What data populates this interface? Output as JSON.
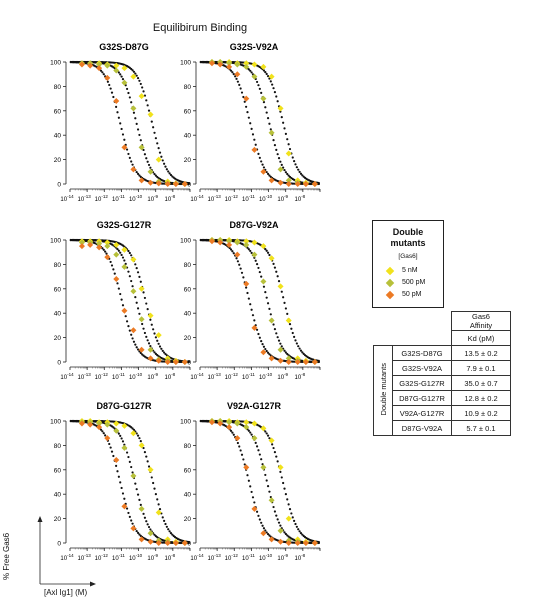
{
  "title": "Equilibirum Binding",
  "x_axis_label": "[Axl Ig1] (M)",
  "y_axis_label": "% Free Gas6",
  "colors": {
    "fit_curve": "#111111",
    "5 nM": "#f1e21c",
    "500 pM": "#b7c03a",
    "50 pM": "#ec7a24"
  },
  "legend": {
    "title_line1": "Double",
    "title_line2": "mutants",
    "subtitle": "[Gas6]",
    "items": [
      {
        "label": "5 nM",
        "color": "#f1e21c"
      },
      {
        "label": "500 pM",
        "color": "#b7c03a"
      },
      {
        "label": "50 pM",
        "color": "#ec7a24"
      }
    ]
  },
  "affinity_table": {
    "header_line1": "Gas6",
    "header_line2": "Affinity",
    "units": "Kd (pM)",
    "row_group_label": "Double mutants",
    "rows": [
      {
        "mutant": "G32S-D87G",
        "kd": "13.5 ± 0.2"
      },
      {
        "mutant": "G32S-V92A",
        "kd": "7.9 ± 0.1"
      },
      {
        "mutant": "G32S-G127R",
        "kd": "35.0 ± 0.7"
      },
      {
        "mutant": "D87G-G127R",
        "kd": "12.8 ± 0.2"
      },
      {
        "mutant": "V92A-G127R",
        "kd": "10.9 ± 0.2"
      },
      {
        "mutant": "D87G-V92A",
        "kd": "5.7 ± 0.1"
      }
    ]
  },
  "chart_data": [
    {
      "type": "scatter",
      "title": "G32S-D87G",
      "x_scale": "log",
      "xlim": [
        1e-14,
        1e-07
      ],
      "ylim": [
        0,
        100
      ],
      "x_tick_labels": [
        "10^-14",
        "10^-13",
        "10^-12",
        "10^-11",
        "10^-10",
        "10^-9",
        "10^-8"
      ],
      "y_ticks": [
        0,
        20,
        40,
        60,
        80,
        100
      ],
      "x": [
        5e-14,
        1.5e-13,
        5e-13,
        1.5e-12,
        5e-12,
        1.5e-11,
        5e-11,
        1.5e-10,
        5e-10,
        1.5e-09,
        5e-09,
        1.5e-08,
        5e-08
      ],
      "series": [
        {
          "name": "5 nM",
          "values": [
            99,
            99,
            99,
            98,
            97,
            95,
            88,
            72,
            57,
            20,
            2,
            0.5,
            0
          ]
        },
        {
          "name": "500 pM",
          "values": [
            99,
            99,
            98,
            97,
            93,
            83,
            62,
            30,
            10,
            2,
            0.5,
            0,
            0
          ]
        },
        {
          "name": "50 pM",
          "values": [
            98,
            97,
            95,
            87,
            68,
            30,
            12,
            3,
            1,
            0.5,
            0,
            0,
            0
          ]
        }
      ]
    },
    {
      "type": "scatter",
      "title": "G32S-V92A",
      "x_scale": "log",
      "xlim": [
        1e-14,
        1e-07
      ],
      "ylim": [
        0,
        100
      ],
      "x_tick_labels": [
        "10^-14",
        "10^-13",
        "10^-12",
        "10^-11",
        "10^-10",
        "10^-9",
        "10^-8"
      ],
      "y_ticks": [
        0,
        20,
        40,
        60,
        80,
        100
      ],
      "x": [
        5e-14,
        1.5e-13,
        5e-13,
        1.5e-12,
        5e-12,
        1.5e-11,
        5e-11,
        1.5e-10,
        5e-10,
        1.5e-09,
        5e-09,
        1.5e-08,
        5e-08
      ],
      "series": [
        {
          "name": "5 nM",
          "values": [
            100,
            100,
            100,
            99,
            99,
            98,
            96,
            88,
            62,
            25,
            3,
            1,
            0
          ]
        },
        {
          "name": "500 pM",
          "values": [
            100,
            100,
            99,
            98,
            96,
            88,
            70,
            42,
            12,
            3,
            1,
            0,
            0
          ]
        },
        {
          "name": "50 pM",
          "values": [
            99,
            98,
            96,
            90,
            70,
            28,
            10,
            3,
            1,
            0,
            0,
            0,
            0
          ]
        }
      ]
    },
    {
      "type": "scatter",
      "title": "G32S-G127R",
      "x_scale": "log",
      "xlim": [
        1e-14,
        1e-07
      ],
      "ylim": [
        0,
        100
      ],
      "x_tick_labels": [
        "10^-14",
        "10^-13",
        "10^-12",
        "10^-11",
        "10^-10",
        "10^-9",
        "10^-8"
      ],
      "y_ticks": [
        0,
        20,
        40,
        60,
        80,
        100
      ],
      "x": [
        5e-14,
        1.5e-13,
        5e-13,
        1.5e-12,
        5e-12,
        1.5e-11,
        5e-11,
        1.5e-10,
        5e-10,
        1.5e-09,
        5e-09,
        1.5e-08,
        5e-08
      ],
      "series": [
        {
          "name": "5 nM",
          "values": [
            99,
            99,
            99,
            98,
            96,
            92,
            84,
            60,
            38,
            22,
            3,
            1,
            0
          ]
        },
        {
          "name": "500 pM",
          "values": [
            98,
            98,
            97,
            95,
            88,
            78,
            58,
            35,
            10,
            2,
            1,
            0,
            0
          ]
        },
        {
          "name": "50 pM",
          "values": [
            95,
            96,
            94,
            86,
            68,
            42,
            26,
            10,
            3,
            1,
            0,
            0,
            0
          ]
        }
      ]
    },
    {
      "type": "scatter",
      "title": "D87G-V92A",
      "x_scale": "log",
      "xlim": [
        1e-14,
        1e-07
      ],
      "ylim": [
        0,
        100
      ],
      "x_tick_labels": [
        "10^-14",
        "10^-13",
        "10^-12",
        "10^-11",
        "10^-10",
        "10^-9",
        "10^-8"
      ],
      "y_ticks": [
        0,
        20,
        40,
        60,
        80,
        100
      ],
      "x": [
        5e-14,
        1.5e-13,
        5e-13,
        1.5e-12,
        5e-12,
        1.5e-11,
        5e-11,
        1.5e-10,
        5e-10,
        1.5e-09,
        5e-09,
        1.5e-08,
        5e-08
      ],
      "series": [
        {
          "name": "5 nM",
          "values": [
            100,
            100,
            100,
            99,
            99,
            98,
            95,
            85,
            62,
            34,
            3,
            1,
            0
          ]
        },
        {
          "name": "500 pM",
          "values": [
            100,
            100,
            99,
            98,
            96,
            88,
            66,
            34,
            10,
            3,
            1,
            0,
            0
          ]
        },
        {
          "name": "50 pM",
          "values": [
            99,
            98,
            96,
            88,
            64,
            28,
            8,
            3,
            1,
            0,
            0,
            0,
            0
          ]
        }
      ]
    },
    {
      "type": "scatter",
      "title": "D87G-G127R",
      "x_scale": "log",
      "xlim": [
        1e-14,
        1e-07
      ],
      "ylim": [
        0,
        100
      ],
      "x_tick_labels": [
        "10^-14",
        "10^-13",
        "10^-12",
        "10^-11",
        "10^-10",
        "10^-9",
        "10^-8"
      ],
      "y_ticks": [
        0,
        20,
        40,
        60,
        80,
        100
      ],
      "x": [
        5e-14,
        1.5e-13,
        5e-13,
        1.5e-12,
        5e-12,
        1.5e-11,
        5e-11,
        1.5e-10,
        5e-10,
        1.5e-09,
        5e-09,
        1.5e-08,
        5e-08
      ],
      "series": [
        {
          "name": "5 nM",
          "values": [
            100,
            100,
            99,
            99,
            98,
            96,
            90,
            80,
            60,
            25,
            3,
            1,
            0
          ]
        },
        {
          "name": "500 pM",
          "values": [
            99,
            99,
            98,
            97,
            92,
            78,
            55,
            28,
            8,
            2,
            1,
            0,
            0
          ]
        },
        {
          "name": "50 pM",
          "values": [
            98,
            97,
            95,
            86,
            68,
            30,
            12,
            3,
            1,
            0,
            0,
            0,
            0
          ]
        }
      ]
    },
    {
      "type": "scatter",
      "title": "V92A-G127R",
      "x_scale": "log",
      "xlim": [
        1e-14,
        1e-07
      ],
      "ylim": [
        0,
        100
      ],
      "x_tick_labels": [
        "10^-14",
        "10^-13",
        "10^-12",
        "10^-11",
        "10^-10",
        "10^-9",
        "10^-8"
      ],
      "y_ticks": [
        0,
        20,
        40,
        60,
        80,
        100
      ],
      "x": [
        5e-14,
        1.5e-13,
        5e-13,
        1.5e-12,
        5e-12,
        1.5e-11,
        5e-11,
        1.5e-10,
        5e-10,
        1.5e-09,
        5e-09,
        1.5e-08,
        5e-08
      ],
      "series": [
        {
          "name": "5 nM",
          "values": [
            100,
            100,
            100,
            99,
            99,
            98,
            94,
            84,
            62,
            20,
            3,
            1,
            0
          ]
        },
        {
          "name": "500 pM",
          "values": [
            100,
            100,
            99,
            98,
            95,
            86,
            62,
            35,
            10,
            2,
            1,
            0,
            0
          ]
        },
        {
          "name": "50 pM",
          "values": [
            99,
            98,
            95,
            86,
            62,
            28,
            8,
            3,
            1,
            0,
            0,
            0,
            0
          ]
        }
      ]
    }
  ]
}
